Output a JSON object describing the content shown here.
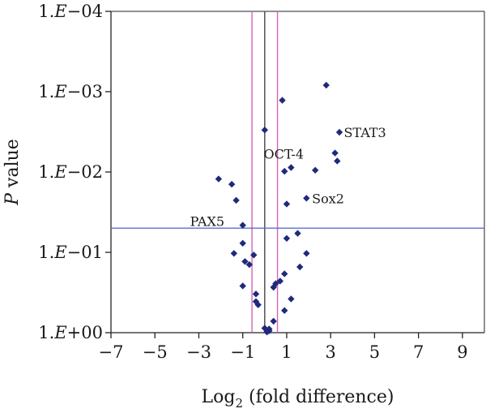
{
  "chart_data": {
    "type": "scatter",
    "title": "",
    "xlabel": "Log2 (fold difference)",
    "xlabel_parts": {
      "main": "Log",
      "sub": "2",
      "rest": " (fold difference)"
    },
    "ylabel": "P value",
    "ylabel_parts": {
      "italic": "P",
      "rest": " value"
    },
    "xlim": [
      -7,
      10
    ],
    "xticks": [
      -7,
      -5,
      -3,
      -1,
      1,
      3,
      5,
      7,
      9
    ],
    "xtick_labels": [
      "−7",
      "−5",
      "−3",
      "−1",
      "1",
      "3",
      "5",
      "7",
      "9"
    ],
    "y_scale": "log",
    "ylim": [
      1,
      0.0001
    ],
    "yticks": [
      1,
      0.1,
      0.01,
      0.001,
      0.0001
    ],
    "ytick_labels": [
      {
        "pre": "1.",
        "it": "E",
        "post": "+00"
      },
      {
        "pre": "1.",
        "it": "E",
        "post": "−01"
      },
      {
        "pre": "1.",
        "it": "E",
        "post": "−02"
      },
      {
        "pre": "1.",
        "it": "E",
        "post": "−03"
      },
      {
        "pre": "1.",
        "it": "E",
        "post": "−04"
      }
    ],
    "reference_lines": [
      {
        "orientation": "vertical",
        "x": -0.58,
        "color": "#d463b8"
      },
      {
        "orientation": "vertical",
        "x": 0,
        "color": "#444444"
      },
      {
        "orientation": "vertical",
        "x": 0.58,
        "color": "#d463b8"
      },
      {
        "orientation": "horizontal",
        "y": 0.05,
        "color": "#5b6fd6"
      }
    ],
    "marker_color": "#1f2a7a",
    "points": [
      {
        "x": 2.8,
        "y": 0.00083
      },
      {
        "x": 0.8,
        "y": 0.00128
      },
      {
        "x": 3.4,
        "y": 0.0032
      },
      {
        "x": 0.0,
        "y": 0.003
      },
      {
        "x": 3.2,
        "y": 0.0058
      },
      {
        "x": 3.3,
        "y": 0.0073
      },
      {
        "x": 1.2,
        "y": 0.0088
      },
      {
        "x": 0.9,
        "y": 0.0098
      },
      {
        "x": 2.3,
        "y": 0.0095
      },
      {
        "x": -2.1,
        "y": 0.0122
      },
      {
        "x": -1.5,
        "y": 0.0142
      },
      {
        "x": -1.3,
        "y": 0.0225
      },
      {
        "x": 1.9,
        "y": 0.0212
      },
      {
        "x": 1.0,
        "y": 0.025
      },
      {
        "x": -1.0,
        "y": 0.046
      },
      {
        "x": 1.5,
        "y": 0.058
      },
      {
        "x": 1.0,
        "y": 0.067
      },
      {
        "x": -1.0,
        "y": 0.077
      },
      {
        "x": -1.4,
        "y": 0.103
      },
      {
        "x": 1.9,
        "y": 0.103
      },
      {
        "x": -0.9,
        "y": 0.13
      },
      {
        "x": -0.5,
        "y": 0.108
      },
      {
        "x": -0.7,
        "y": 0.142
      },
      {
        "x": 1.6,
        "y": 0.152
      },
      {
        "x": 0.9,
        "y": 0.185
      },
      {
        "x": 0.7,
        "y": 0.228
      },
      {
        "x": 0.5,
        "y": 0.245
      },
      {
        "x": -1.0,
        "y": 0.262
      },
      {
        "x": 0.4,
        "y": 0.272
      },
      {
        "x": -0.4,
        "y": 0.33
      },
      {
        "x": 1.2,
        "y": 0.38
      },
      {
        "x": -0.4,
        "y": 0.41
      },
      {
        "x": -0.3,
        "y": 0.45
      },
      {
        "x": 0.9,
        "y": 0.53
      },
      {
        "x": 0.4,
        "y": 0.72
      },
      {
        "x": 0.0,
        "y": 0.88
      },
      {
        "x": 0.2,
        "y": 0.9
      },
      {
        "x": 0.2,
        "y": 0.95
      },
      {
        "x": 0.1,
        "y": 0.98
      }
    ],
    "annotations": [
      {
        "text": "STAT3",
        "x": 3.6,
        "y": 0.0032
      },
      {
        "text": "OCT-4",
        "x": -0.05,
        "y": 0.0059
      },
      {
        "text": "Sox2",
        "x": 2.15,
        "y": 0.0212
      },
      {
        "text": "PAX5",
        "x": -3.4,
        "y": 0.041
      }
    ]
  }
}
